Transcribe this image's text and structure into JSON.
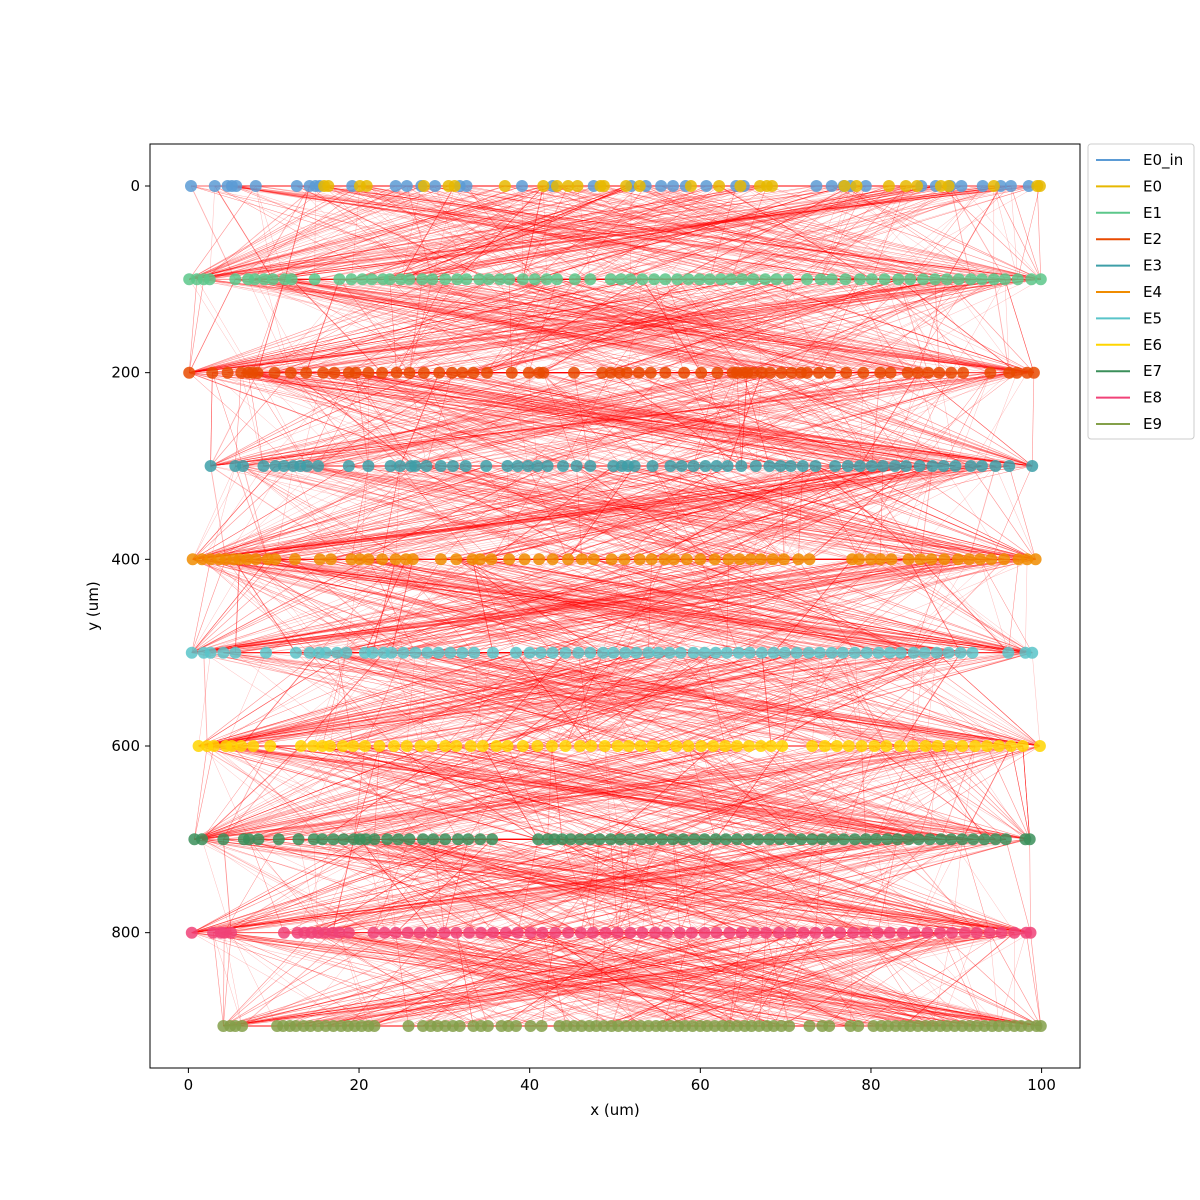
{
  "chart_data": {
    "type": "scatter",
    "title": "",
    "xlabel": "x (um)",
    "ylabel": "y (um)",
    "xlim": [
      -4.5,
      104.5
    ],
    "ylim": [
      -45,
      945
    ],
    "y_inverted": true,
    "x_ticks": [
      0,
      20,
      40,
      60,
      80,
      100
    ],
    "y_ticks": [
      0,
      200,
      400,
      600,
      800
    ],
    "grid": false,
    "legend": {
      "placement": "outside-top-right"
    },
    "connection_color": "#ff0000",
    "series": [
      {
        "name": "E0_in",
        "color": "#5b9bd5",
        "y": 0,
        "x": [
          0.3,
          3.1,
          4.6,
          5.1,
          5.6,
          7.9,
          12.7,
          14.2,
          14.9,
          15.4,
          19.2,
          24.3,
          25.6,
          27.3,
          28.9,
          31.8,
          32.6,
          39.1,
          42.7,
          47.5,
          51.9,
          53.6,
          55.4,
          56.8,
          58.3,
          60.7,
          64.2,
          65.1,
          73.6,
          75.4,
          76.8,
          77.6,
          79.4,
          85.9,
          87.6,
          89.3,
          90.6,
          93.1,
          95.2,
          96.4,
          98.5
        ]
      },
      {
        "name": "E0",
        "color": "#e6b800",
        "y": 0,
        "x": [
          15.9,
          16.4,
          20.1,
          20.9,
          27.6,
          30.5,
          31.2,
          37.1,
          41.6,
          43.2,
          44.5,
          45.6,
          48.3,
          48.7,
          51.3,
          52.9,
          58.9,
          62.2,
          64.7,
          67.0,
          67.8,
          68.4,
          76.9,
          78.3,
          82.1,
          84.1,
          85.4,
          88.2,
          89.1,
          94.4,
          99.5,
          99.8
        ]
      },
      {
        "name": "E1",
        "color": "#5cc78a",
        "y": 100,
        "x": [
          0.1,
          1.0,
          1.8,
          2.5,
          5.5,
          7.0,
          7.8,
          8.9,
          9.9,
          11.3,
          12.1,
          14.8,
          17.7,
          19.1,
          20.4,
          21.5,
          22.8,
          23.6,
          24.9,
          25.9,
          27.4,
          28.6,
          30.1,
          31.5,
          32.6,
          34.1,
          35.2,
          36.5,
          37.6,
          39.2,
          40.6,
          42.0,
          43.2,
          45.3,
          47.1,
          49.5,
          50.7,
          51.8,
          53.2,
          54.6,
          55.9,
          57.3,
          58.6,
          59.9,
          61.1,
          62.4,
          63.6,
          64.9,
          66.2,
          67.6,
          68.9,
          70.3,
          72.5,
          74.1,
          75.4,
          77.0,
          78.7,
          80.1,
          81.6,
          83.2,
          84.6,
          86.1,
          87.5,
          88.9,
          90.3,
          91.7,
          93.0,
          94.4,
          95.7,
          97.2,
          98.8,
          99.9
        ]
      },
      {
        "name": "E2",
        "color": "#e84a00",
        "y": 200,
        "x": [
          0.1,
          2.8,
          4.6,
          6.2,
          7.0,
          7.5,
          8.1,
          10.1,
          12.0,
          13.8,
          15.8,
          17.1,
          18.8,
          19.6,
          21.1,
          22.7,
          24.4,
          25.9,
          27.6,
          29.4,
          30.9,
          32.1,
          33.4,
          35.0,
          37.9,
          39.9,
          41.1,
          41.6,
          45.2,
          48.5,
          49.5,
          50.5,
          51.4,
          52.8,
          54.2,
          55.9,
          58.1,
          60.1,
          62.0,
          63.8,
          64.3,
          65.0,
          65.5,
          66.2,
          67.2,
          68.2,
          69.5,
          70.7,
          71.8,
          72.5,
          73.9,
          75.2,
          77.1,
          79.1,
          81.1,
          82.3,
          84.3,
          85.5,
          86.7,
          88.0,
          89.4,
          90.8,
          94.0,
          96.2,
          97.1,
          98.3,
          99.1
        ]
      },
      {
        "name": "E3",
        "color": "#3d9fa8",
        "y": 300,
        "x": [
          2.6,
          5.5,
          6.4,
          8.8,
          10.2,
          11.2,
          12.3,
          13.1,
          13.9,
          15.2,
          18.8,
          21.1,
          23.7,
          24.8,
          26.1,
          26.6,
          27.9,
          29.6,
          31.0,
          32.5,
          34.9,
          37.4,
          38.6,
          39.8,
          40.9,
          42.1,
          43.9,
          45.5,
          47.1,
          49.8,
          50.8,
          51.5,
          52.3,
          54.4,
          56.5,
          57.8,
          59.2,
          60.6,
          61.9,
          63.2,
          64.8,
          66.5,
          68.1,
          69.4,
          70.6,
          72.0,
          73.5,
          75.8,
          77.3,
          78.7,
          80.1,
          81.4,
          82.8,
          84.1,
          85.7,
          87.2,
          88.5,
          89.9,
          91.7,
          93.0,
          94.6,
          96.2,
          98.9
        ]
      },
      {
        "name": "E4",
        "color": "#f08c00",
        "y": 400,
        "x": [
          0.5,
          1.6,
          2.6,
          3.6,
          4.4,
          5.3,
          6.0,
          6.9,
          7.9,
          9.3,
          10.2,
          12.5,
          15.4,
          16.7,
          19.1,
          20.1,
          21.1,
          22.7,
          24.3,
          25.5,
          26.3,
          29.6,
          31.4,
          33.3,
          34.2,
          35.5,
          37.6,
          39.4,
          41.1,
          42.7,
          44.5,
          46.1,
          47.5,
          49.6,
          51.1,
          52.9,
          54.3,
          55.8,
          56.9,
          58.4,
          60.0,
          61.7,
          63.3,
          64.6,
          65.9,
          67.1,
          68.5,
          69.8,
          71.5,
          72.8,
          77.8,
          78.6,
          80.0,
          81.1,
          82.4,
          84.4,
          85.8,
          87.1,
          88.6,
          90.2,
          91.5,
          92.8,
          94.1,
          95.6,
          97.3,
          98.3,
          99.3
        ]
      },
      {
        "name": "E5",
        "color": "#59c4c9",
        "y": 500,
        "x": [
          0.4,
          1.8,
          2.6,
          4.1,
          5.5,
          9.1,
          12.6,
          14.2,
          15.3,
          16.1,
          17.4,
          18.5,
          20.7,
          21.6,
          22.9,
          23.8,
          25.2,
          26.6,
          28.0,
          29.3,
          30.7,
          32.1,
          33.5,
          35.7,
          38.4,
          40.0,
          41.3,
          42.7,
          44.2,
          45.7,
          47.1,
          48.6,
          49.8,
          51.2,
          52.5,
          53.9,
          55.1,
          56.4,
          57.7,
          59.2,
          60.5,
          61.8,
          63.1,
          64.5,
          65.8,
          67.2,
          68.6,
          69.9,
          71.3,
          72.7,
          74.0,
          75.4,
          76.7,
          78.1,
          79.5,
          80.9,
          82.2,
          83.5,
          85.0,
          86.3,
          87.7,
          89.1,
          90.5,
          91.9,
          96.1,
          98.1,
          98.9
        ]
      },
      {
        "name": "E6",
        "color": "#ffd500",
        "y": 600,
        "x": [
          1.2,
          2.2,
          3.0,
          4.4,
          5.1,
          6.2,
          7.6,
          9.6,
          13.2,
          14.6,
          15.7,
          16.6,
          18.1,
          19.3,
          20.7,
          22.4,
          24.1,
          25.6,
          27.2,
          28.5,
          30.1,
          31.4,
          33.1,
          34.5,
          36.1,
          37.4,
          39.2,
          40.9,
          42.6,
          44.2,
          45.9,
          47.2,
          48.8,
          50.3,
          51.6,
          53.0,
          54.4,
          55.8,
          57.2,
          58.6,
          60.1,
          61.5,
          62.9,
          64.3,
          65.7,
          67.1,
          68.3,
          69.6,
          73.1,
          74.6,
          76.0,
          77.4,
          78.9,
          80.4,
          81.8,
          83.4,
          84.9,
          86.4,
          87.8,
          89.3,
          90.7,
          92.2,
          93.6,
          95.0,
          96.4,
          97.8,
          99.8
        ]
      },
      {
        "name": "E7",
        "color": "#3b8f5a",
        "y": 700,
        "x": [
          0.7,
          1.6,
          4.1,
          6.5,
          7.1,
          8.2,
          10.6,
          12.9,
          14.7,
          15.7,
          17.0,
          18.2,
          19.4,
          20.1,
          20.8,
          21.8,
          23.3,
          24.6,
          25.9,
          27.5,
          28.7,
          30.1,
          31.6,
          32.8,
          34.2,
          35.6,
          41.0,
          42.1,
          42.9,
          43.8,
          44.8,
          45.9,
          47.1,
          48.2,
          49.5,
          50.6,
          51.8,
          53.1,
          54.2,
          55.5,
          56.8,
          58.0,
          59.3,
          60.5,
          61.8,
          63.0,
          64.3,
          65.6,
          66.8,
          68.1,
          69.3,
          70.6,
          71.8,
          73.1,
          74.3,
          75.6,
          76.8,
          78.1,
          79.4,
          80.6,
          81.9,
          83.1,
          84.4,
          85.6,
          86.9,
          88.2,
          89.4,
          90.7,
          92.0,
          93.3,
          94.6,
          95.8,
          98.1,
          98.6
        ]
      },
      {
        "name": "E8",
        "color": "#f04278",
        "y": 800,
        "x": [
          0.4,
          2.9,
          3.8,
          4.2,
          5.0,
          11.2,
          12.8,
          13.6,
          14.4,
          15.2,
          16.0,
          16.9,
          17.7,
          18.8,
          21.7,
          23.0,
          24.3,
          25.7,
          27.1,
          28.5,
          30.0,
          31.4,
          32.9,
          34.3,
          35.7,
          37.2,
          38.6,
          40.1,
          41.5,
          43.0,
          44.5,
          46.0,
          47.4,
          48.9,
          50.3,
          51.8,
          53.2,
          54.7,
          56.1,
          57.6,
          59.0,
          60.5,
          61.9,
          63.4,
          64.8,
          66.3,
          67.7,
          69.2,
          70.6,
          72.1,
          73.5,
          75.0,
          76.4,
          77.9,
          79.3,
          80.8,
          82.2,
          83.7,
          85.1,
          86.6,
          88.1,
          89.5,
          91.0,
          92.4,
          93.9,
          95.3,
          96.8,
          98.2,
          98.7
        ]
      },
      {
        "name": "E9",
        "color": "#84a04a",
        "y": 900,
        "x": [
          4.1,
          4.9,
          5.5,
          6.3,
          10.4,
          11.1,
          11.9,
          12.6,
          13.5,
          14.3,
          15.2,
          16.1,
          17.0,
          17.9,
          18.7,
          19.5,
          20.3,
          21.1,
          21.8,
          25.8,
          27.5,
          28.4,
          29.2,
          30.1,
          31.0,
          31.8,
          33.4,
          34.3,
          35.1,
          36.7,
          37.5,
          38.4,
          40.1,
          41.4,
          43.5,
          44.3,
          45.2,
          46.1,
          47.0,
          47.8,
          48.7,
          49.6,
          50.4,
          51.3,
          52.2,
          53.0,
          53.9,
          54.8,
          55.6,
          56.5,
          57.4,
          58.2,
          59.1,
          60.0,
          60.8,
          61.7,
          62.6,
          63.4,
          64.3,
          65.2,
          66.0,
          66.9,
          67.8,
          68.6,
          69.5,
          70.4,
          72.8,
          74.3,
          75.1,
          77.6,
          78.5,
          80.3,
          81.2,
          82.0,
          82.9,
          83.8,
          84.6,
          85.5,
          86.4,
          87.2,
          88.1,
          88.9,
          89.8,
          90.7,
          91.6,
          92.4,
          93.3,
          94.2,
          95.0,
          95.9,
          96.8,
          97.6,
          98.5,
          99.4,
          99.9
        ]
      }
    ]
  }
}
